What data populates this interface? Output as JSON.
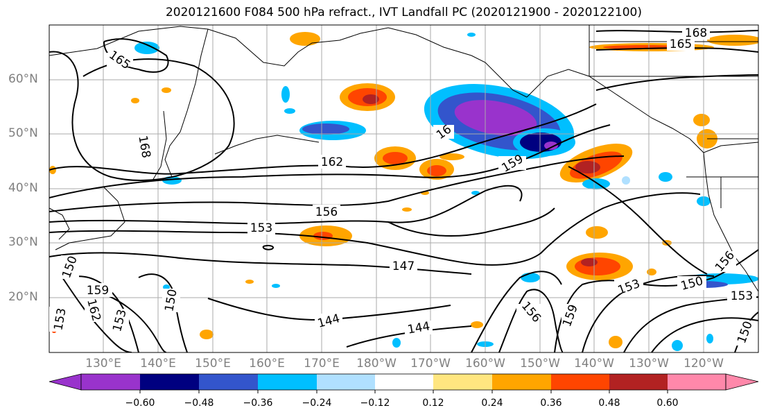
{
  "title": "2020121600 F084 500 hPa refract., IVT Landfall PC (2020121900 - 2020122100)",
  "lat_labels": [
    "60°N",
    "50°N",
    "40°N",
    "30°N",
    "20°N"
  ],
  "lon_labels": [
    "130°E",
    "140°E",
    "150°E",
    "160°E",
    "170°E",
    "180°W",
    "170°W",
    "160°W",
    "150°W",
    "140°W",
    "130°W",
    "120°W"
  ],
  "colorbar": {
    "ticks": [
      "−0.60",
      "−0.48",
      "−0.36",
      "−0.24",
      "−0.12",
      "0.12",
      "0.24",
      "0.36",
      "0.48",
      "0.60"
    ],
    "colors": [
      "#9933cc",
      "#000080",
      "#3355cc",
      "#00bfff",
      "#b0e0ff",
      "#ffffff",
      "#ffe680",
      "#ffa500",
      "#ff4500",
      "#b22222",
      "#ff88aa"
    ]
  },
  "contour_labels": [
    "165",
    "168",
    "165",
    "16",
    "162",
    "159",
    "168",
    "156",
    "153",
    "147",
    "144",
    "144",
    "150",
    "159",
    "162",
    "153",
    "150",
    "156",
    "159",
    "153",
    "150",
    "153",
    "150",
    "156",
    "153"
  ]
}
